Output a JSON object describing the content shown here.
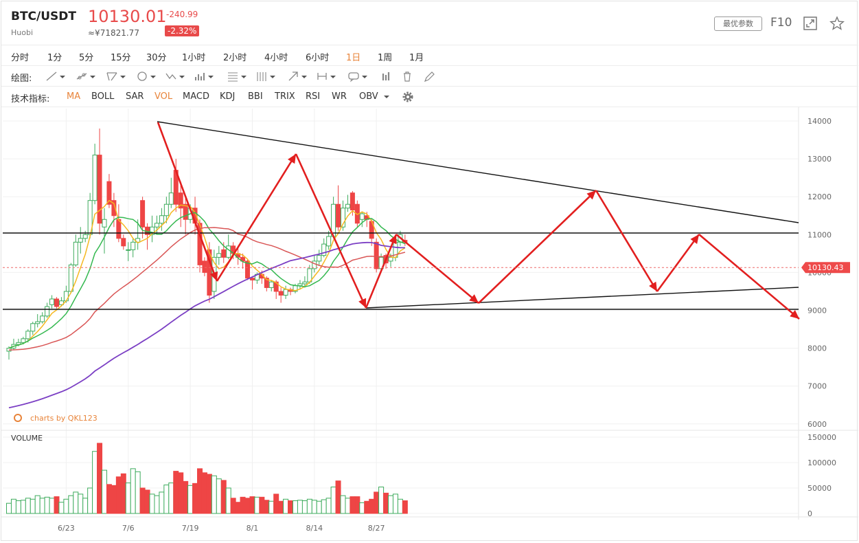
{
  "header": {
    "symbol": "BTC/USDT",
    "exchange": "Huobi",
    "price": "10130.01",
    "price_cny": "≈¥71821.77",
    "change": "-240.99",
    "change_pct": "-2.32%",
    "params_button": "最优参数",
    "f10": "F10",
    "icons": [
      "expand-icon",
      "star-icon"
    ]
  },
  "periods": [
    "分时",
    "1分",
    "5分",
    "15分",
    "30分",
    "1小时",
    "2小时",
    "4小时",
    "6小时",
    "1日",
    "1周",
    "1月"
  ],
  "active_period": "1日",
  "draw_label": "绘图:",
  "draw_tools": [
    "line-tool-icon",
    "ray-tool-icon",
    "channel-tool-icon",
    "circle-tool-icon",
    "wave-tool-icon",
    "pattern-tool-icon",
    "fib-tool-icon",
    "gann-tool-icon",
    "arrow-tool-icon",
    "range-tool-icon",
    "comment-tool-icon",
    "measure-tool-icon",
    "delete-tool-icon",
    "brush-tool-icon"
  ],
  "indicator_label": "技术指标:",
  "indicators": [
    "MA",
    "BOLL",
    "SAR",
    "VOL",
    "MACD",
    "KDJ",
    "BBI",
    "TRIX",
    "RSI",
    "WR",
    "OBV"
  ],
  "active_indicators": [
    "MA",
    "VOL"
  ],
  "colors": {
    "up": "#3dab5c",
    "down": "#ee4545",
    "ma5": "#f5b820",
    "ma10": "#33b84f",
    "ma30": "#d95555",
    "ma60": "#7b3fc4",
    "annotation": "#e21f1f",
    "trendline": "#111111",
    "accent": "#e8843a"
  },
  "chart_data": {
    "type": "candlestick",
    "watermark": "charts by QKL123",
    "volume_label": "VOLUME",
    "y_ticks": [
      6000,
      7000,
      8000,
      9000,
      10000,
      11000,
      12000,
      13000,
      14000
    ],
    "ylim": [
      6000,
      14300
    ],
    "vol_ticks": [
      {
        "v": 0,
        "label": "0"
      },
      {
        "v": 50000,
        "label": "50000"
      },
      {
        "v": 100000,
        "label": "100000"
      },
      {
        "v": 150000,
        "label": "150000"
      }
    ],
    "vol_max": 150000,
    "x_labels": [
      {
        "day": 12,
        "label": "6/23"
      },
      {
        "day": 25,
        "label": "7/6"
      },
      {
        "day": 38,
        "label": "7/19"
      },
      {
        "day": 51,
        "label": "8/1"
      },
      {
        "day": 64,
        "label": "8/14"
      },
      {
        "day": 77,
        "label": "8/27"
      }
    ],
    "last_price_label": "10130.43",
    "last_price": 10130.43,
    "candles": [
      [
        7920,
        8000,
        7700,
        8050,
        20000
      ],
      [
        8000,
        8100,
        7950,
        8250,
        28000
      ],
      [
        8100,
        8150,
        8050,
        8250,
        25000
      ],
      [
        8150,
        8250,
        8100,
        8300,
        26000
      ],
      [
        8250,
        8450,
        8150,
        8500,
        30000
      ],
      [
        8450,
        8650,
        8350,
        8700,
        28000
      ],
      [
        8650,
        8700,
        8550,
        8900,
        35000
      ],
      [
        8700,
        8850,
        8650,
        8950,
        30000
      ],
      [
        8850,
        9100,
        8800,
        9200,
        32000
      ],
      [
        9150,
        9300,
        9050,
        9400,
        30000
      ],
      [
        9300,
        9100,
        9050,
        9350,
        33000
      ],
      [
        9150,
        9250,
        9100,
        9350,
        22000
      ],
      [
        9250,
        9500,
        9200,
        9650,
        28000
      ],
      [
        9500,
        10200,
        9450,
        10250,
        35000
      ],
      [
        10200,
        10800,
        10150,
        11000,
        42000
      ],
      [
        10800,
        10900,
        10500,
        11200,
        38000
      ],
      [
        10900,
        11000,
        10800,
        11100,
        30000
      ],
      [
        11000,
        11900,
        10900,
        12100,
        50000
      ],
      [
        11900,
        13100,
        11800,
        13400,
        122000
      ],
      [
        13100,
        11300,
        11000,
        13800,
        138000
      ],
      [
        11200,
        11400,
        10500,
        11700,
        85000
      ],
      [
        12400,
        11800,
        11700,
        12600,
        57000
      ],
      [
        11900,
        11500,
        11200,
        12100,
        55000
      ],
      [
        11400,
        10900,
        10800,
        11800,
        72000
      ],
      [
        10900,
        10700,
        10600,
        11000,
        78000
      ],
      [
        10600,
        10600,
        10300,
        10800,
        60000
      ],
      [
        10600,
        10800,
        10400,
        10900,
        88000
      ],
      [
        10800,
        10900,
        10600,
        11400,
        82000
      ],
      [
        11900,
        11200,
        10900,
        12000,
        50000
      ],
      [
        11200,
        11000,
        10600,
        11300,
        46000
      ],
      [
        11000,
        11200,
        10800,
        11500,
        38000
      ],
      [
        11200,
        11300,
        11000,
        11500,
        35000
      ],
      [
        11300,
        11500,
        11100,
        11700,
        42000
      ],
      [
        11500,
        11800,
        11300,
        12000,
        56000
      ],
      [
        11800,
        12100,
        11700,
        12500,
        60000
      ],
      [
        12700,
        11800,
        11600,
        13000,
        83000
      ],
      [
        12100,
        11700,
        11200,
        12400,
        80000
      ],
      [
        11800,
        11400,
        11000,
        12000,
        63000
      ],
      [
        11400,
        11700,
        11300,
        11800,
        55000
      ],
      [
        11700,
        11300,
        11000,
        12000,
        59000
      ],
      [
        11300,
        10200,
        10000,
        11400,
        88000
      ],
      [
        10300,
        10000,
        9900,
        10400,
        80000
      ],
      [
        10600,
        9400,
        9200,
        10800,
        77000
      ],
      [
        9500,
        10400,
        9300,
        10600,
        74000
      ],
      [
        10400,
        10500,
        10200,
        10700,
        68000
      ],
      [
        10600,
        10400,
        10250,
        10800,
        65000
      ],
      [
        10400,
        10700,
        10350,
        11000,
        50000
      ],
      [
        10700,
        10500,
        10350,
        10800,
        30000
      ],
      [
        10500,
        10400,
        10200,
        10700,
        22000
      ],
      [
        10400,
        10300,
        10100,
        10500,
        32000
      ],
      [
        10300,
        9850,
        9800,
        10350,
        30000
      ],
      [
        9850,
        9800,
        9550,
        9900,
        33000
      ],
      [
        9800,
        9950,
        9700,
        10000,
        32000
      ],
      [
        9950,
        9850,
        9700,
        10050,
        32000
      ],
      [
        9850,
        9600,
        9500,
        9900,
        26000
      ],
      [
        9600,
        9750,
        9500,
        9800,
        24000
      ],
      [
        9750,
        9500,
        9300,
        9800,
        38000
      ],
      [
        9500,
        9400,
        9200,
        9600,
        24000
      ],
      [
        9400,
        9550,
        9300,
        9650,
        28000
      ],
      [
        9550,
        9500,
        9400,
        9600,
        25000
      ],
      [
        9500,
        9650,
        9450,
        9700,
        25000
      ],
      [
        9650,
        9700,
        9550,
        9800,
        26000
      ],
      [
        9700,
        9750,
        9600,
        9900,
        25000
      ],
      [
        9750,
        10100,
        9700,
        10200,
        28000
      ],
      [
        10100,
        10300,
        10000,
        10450,
        26000
      ],
      [
        10300,
        10450,
        10200,
        10600,
        24000
      ],
      [
        10450,
        10750,
        10400,
        10900,
        27000
      ],
      [
        10700,
        10950,
        10600,
        11100,
        30000
      ],
      [
        10950,
        11800,
        10900,
        12000,
        52000
      ],
      [
        11800,
        11200,
        11100,
        12300,
        64000
      ],
      [
        11200,
        11700,
        11100,
        11900,
        35000
      ],
      [
        11700,
        11800,
        11600,
        12050,
        30000
      ],
      [
        12100,
        11650,
        11500,
        12150,
        33000
      ],
      [
        11800,
        11300,
        11200,
        11900,
        33000
      ],
      [
        11400,
        11550,
        11200,
        11600,
        21000
      ],
      [
        11500,
        11400,
        11200,
        11600,
        24000
      ],
      [
        11350,
        10900,
        10700,
        11400,
        28000
      ],
      [
        10800,
        10100,
        10000,
        10900,
        42000
      ],
      [
        10100,
        10400,
        10000,
        10500,
        52000
      ],
      [
        10450,
        10250,
        10100,
        10500,
        40000
      ],
      [
        10300,
        10400,
        10150,
        10500,
        35000
      ],
      [
        10400,
        10800,
        10300,
        10900,
        38000
      ],
      [
        10800,
        11000,
        10700,
        11100,
        28000
      ],
      [
        10850,
        10800,
        10700,
        11000,
        25000
      ]
    ]
  }
}
